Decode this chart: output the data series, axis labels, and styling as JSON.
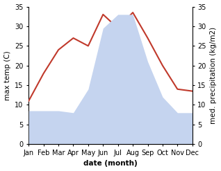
{
  "months": [
    "Jan",
    "Feb",
    "Mar",
    "Apr",
    "May",
    "Jun",
    "Jul",
    "Aug",
    "Sep",
    "Oct",
    "Nov",
    "Dec"
  ],
  "month_x": [
    1,
    2,
    3,
    4,
    5,
    6,
    7,
    8,
    9,
    10,
    11,
    12
  ],
  "temperature": [
    11,
    18,
    24,
    27,
    25,
    33,
    29.5,
    33.5,
    27,
    20,
    14,
    13.5
  ],
  "precipitation": [
    8.5,
    8.5,
    8.5,
    8.0,
    14,
    29.5,
    33,
    33,
    21,
    12,
    8,
    8
  ],
  "temp_color": "#c0392b",
  "precip_color": "#c5d4ef",
  "background_color": "#ffffff",
  "ylabel_left": "max temp (C)",
  "ylabel_right": "med. precipitation (kg/m2)",
  "xlabel": "date (month)",
  "ylim_left": [
    0,
    35
  ],
  "ylim_right": [
    0,
    35
  ],
  "yticks_left": [
    0,
    5,
    10,
    15,
    20,
    25,
    30,
    35
  ],
  "yticks_right": [
    0,
    5,
    10,
    15,
    20,
    25,
    30,
    35
  ],
  "label_fontsize": 7.5,
  "tick_fontsize": 7,
  "line_width": 1.5
}
